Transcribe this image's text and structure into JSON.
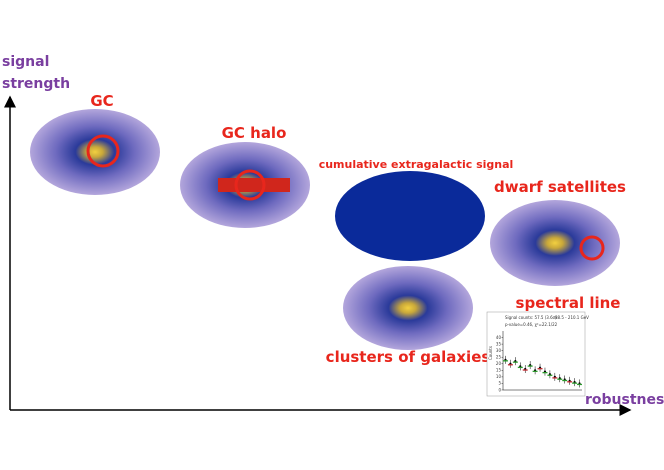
{
  "axes": {
    "y_label": [
      "signal",
      "strength"
    ],
    "x_label": "robustness"
  },
  "targets": [
    {
      "label": "GC"
    },
    {
      "label": "GC halo"
    },
    {
      "label": "cumulative extragalactic signal"
    },
    {
      "label": "dwarf satellites"
    },
    {
      "label": "clusters of galaxies"
    },
    {
      "label": "spectral line"
    }
  ],
  "inset": {
    "texts": [
      "Signal counts: 57.5 (3.6σ)",
      "88.5 - 210.1 GeV",
      "p-value=0.46, χ²=22.1/22"
    ],
    "y_label": "Counts",
    "ylim": [
      0,
      45
    ],
    "yticks": [
      0,
      5,
      10,
      15,
      20,
      25,
      30,
      35,
      40
    ],
    "values": [
      23,
      20,
      22,
      18,
      16,
      19,
      15,
      17,
      14,
      12,
      10,
      9,
      8,
      7,
      6,
      5
    ]
  }
}
